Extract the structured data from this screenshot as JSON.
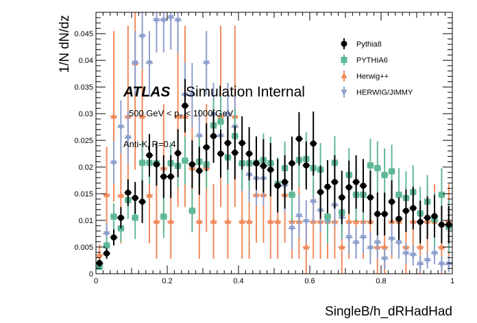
{
  "chart_data": {
    "type": "scatter",
    "xlabel": "SingleB/h_dRHadHad",
    "ylabel": "1/N dN/dz",
    "xlim": [
      0,
      1
    ],
    "ylim": [
      0,
      0.049
    ],
    "x_ticks": [
      "0",
      "0.2",
      "0.4",
      "0.6",
      "0.8",
      "1"
    ],
    "x_tick_values": [
      0,
      0.2,
      0.4,
      0.6,
      0.8,
      1.0
    ],
    "y_ticks": [
      "0",
      "0.005",
      "0.01",
      "0.015",
      "0.02",
      "0.025",
      "0.03",
      "0.035",
      "0.04",
      "0.045"
    ],
    "y_tick_values": [
      0,
      0.005,
      0.01,
      0.015,
      0.02,
      0.025,
      0.03,
      0.035,
      0.04,
      0.045
    ],
    "grid": false,
    "legend_position": "top-right",
    "annotations": {
      "atlas": "ATLAS",
      "atlas_sub": "Simulation Internal",
      "pt_range": "500 GeV < p",
      "pt_sub": "T",
      "pt_range_end": " < 1000 GeV",
      "jet_algo": "Anti-K",
      "jet_algo_sub": "t",
      "jet_algo_end": " R=0.4"
    },
    "series": [
      {
        "name": "Pythia8",
        "color": "#000000",
        "marker": "circle",
        "x": [
          0.01,
          0.03,
          0.05,
          0.07,
          0.09,
          0.11,
          0.13,
          0.15,
          0.17,
          0.19,
          0.21,
          0.23,
          0.25,
          0.27,
          0.29,
          0.31,
          0.33,
          0.35,
          0.37,
          0.39,
          0.41,
          0.43,
          0.45,
          0.47,
          0.49,
          0.51,
          0.53,
          0.55,
          0.57,
          0.59,
          0.61,
          0.63,
          0.65,
          0.67,
          0.69,
          0.71,
          0.73,
          0.75,
          0.77,
          0.79,
          0.81,
          0.83,
          0.85,
          0.87,
          0.89,
          0.91,
          0.93,
          0.95,
          0.97,
          0.99
        ],
        "y": [
          0.002,
          0.0038,
          0.0068,
          0.0105,
          0.0152,
          0.0142,
          0.0135,
          0.0222,
          0.0205,
          0.0182,
          0.0182,
          0.0226,
          0.0315,
          0.0205,
          0.0193,
          0.0237,
          0.0258,
          0.0225,
          0.0245,
          0.0227,
          0.0245,
          0.0225,
          0.0207,
          0.0202,
          0.0195,
          0.0165,
          0.0172,
          0.0207,
          0.0253,
          0.0203,
          0.0244,
          0.0153,
          0.0163,
          0.0172,
          0.0143,
          0.0162,
          0.0172,
          0.0165,
          0.0143,
          0.0112,
          0.0112,
          0.0135,
          0.0103,
          0.0118,
          0.0123,
          0.0097,
          0.0105,
          0.0108,
          0.0092,
          0.0092
        ],
        "err": [
          0.0007,
          0.001,
          0.0015,
          0.002,
          0.0025,
          0.003,
          0.004,
          0.004,
          0.004,
          0.004,
          0.004,
          0.0045,
          0.005,
          0.0045,
          0.0045,
          0.0045,
          0.005,
          0.0045,
          0.005,
          0.005,
          0.005,
          0.005,
          0.005,
          0.005,
          0.005,
          0.005,
          0.005,
          0.005,
          0.005,
          0.0045,
          0.006,
          0.005,
          0.005,
          0.005,
          0.005,
          0.005,
          0.005,
          0.005,
          0.005,
          0.004,
          0.004,
          0.004,
          0.004,
          0.004,
          0.004,
          0.004,
          0.004,
          0.004,
          0.0035,
          0.0035
        ]
      },
      {
        "name": "PYTHIA6",
        "color": "#5fb896",
        "marker": "square",
        "x": [
          0.01,
          0.03,
          0.05,
          0.07,
          0.09,
          0.11,
          0.13,
          0.15,
          0.17,
          0.19,
          0.21,
          0.23,
          0.25,
          0.27,
          0.29,
          0.31,
          0.33,
          0.35,
          0.37,
          0.39,
          0.41,
          0.43,
          0.45,
          0.47,
          0.49,
          0.51,
          0.53,
          0.55,
          0.57,
          0.59,
          0.61,
          0.63,
          0.65,
          0.67,
          0.69,
          0.71,
          0.73,
          0.75,
          0.77,
          0.79,
          0.81,
          0.83,
          0.85,
          0.87,
          0.89,
          0.91,
          0.93,
          0.95,
          0.97,
          0.99
        ],
        "y": [
          0.0013,
          0.0053,
          0.0107,
          0.0085,
          0.0138,
          0.0105,
          0.0208,
          0.0208,
          0.0207,
          0.0107,
          0.0207,
          0.0202,
          0.0212,
          0.0118,
          0.021,
          0.0205,
          0.0278,
          0.0285,
          0.0218,
          0.0258,
          0.0207,
          0.0207,
          0.0208,
          0.0213,
          0.0207,
          0.0168,
          0.0198,
          0.0148,
          0.0213,
          0.0215,
          0.0198,
          0.0195,
          0.0107,
          0.0208,
          0.0115,
          0.0185,
          0.0148,
          0.0148,
          0.0203,
          0.0198,
          0.0185,
          0.0192,
          0.0148,
          0.0142,
          0.0153,
          0.0113,
          0.0135,
          0.0102,
          0.0148,
          0.0088
        ],
        "err": [
          0.0005,
          0.0015,
          0.0025,
          0.0025,
          0.0035,
          0.004,
          0.004,
          0.004,
          0.004,
          0.004,
          0.004,
          0.004,
          0.0045,
          0.004,
          0.0045,
          0.0045,
          0.005,
          0.005,
          0.005,
          0.005,
          0.005,
          0.005,
          0.005,
          0.005,
          0.005,
          0.005,
          0.005,
          0.005,
          0.005,
          0.005,
          0.005,
          0.005,
          0.005,
          0.005,
          0.005,
          0.005,
          0.005,
          0.005,
          0.005,
          0.005,
          0.005,
          0.005,
          0.005,
          0.005,
          0.005,
          0.005,
          0.005,
          0.005,
          0.005,
          0.005
        ]
      },
      {
        "name": "Herwig++",
        "color": "#f08a5b",
        "marker": "triangle-up",
        "x": [
          0.01,
          0.03,
          0.05,
          0.07,
          0.09,
          0.11,
          0.13,
          0.15,
          0.17,
          0.19,
          0.21,
          0.23,
          0.25,
          0.27,
          0.29,
          0.31,
          0.33,
          0.35,
          0.37,
          0.39,
          0.41,
          0.43,
          0.45,
          0.47,
          0.49,
          0.51,
          0.53,
          0.55,
          0.57,
          0.59,
          0.61,
          0.63,
          0.65,
          0.67,
          0.69,
          0.71,
          0.73,
          0.75,
          0.77,
          0.79,
          0.81,
          0.83,
          0.85,
          0.87,
          0.89,
          0.91,
          0.93,
          0.95,
          0.97,
          0.99
        ],
        "y": [
          0.0035,
          0.0148,
          0.0295,
          0.0147,
          0.0295,
          0.0395,
          0.0295,
          0.0147,
          0.0098,
          0.0198,
          0.0098,
          0.0295,
          0.0295,
          0.0198,
          0.0098,
          0.0198,
          0.0098,
          0.0295,
          0.0098,
          0.0295,
          0.0098,
          0.0098,
          0.0148,
          0.0148,
          0.0098,
          0.0098,
          0.0148,
          0.0098,
          0.0098,
          0.005,
          0.0098,
          0.0098,
          0.0098,
          0.0098,
          0.005,
          0.0098,
          0.0098,
          0.0098,
          0.0098,
          0.005,
          0.005,
          0.0098,
          0.0098,
          0.005,
          0.0098,
          0.005,
          0.0098,
          0.0098,
          0.005,
          0.0098
        ],
        "err": [
          0.002,
          0.009,
          0.016,
          0.009,
          0.017,
          0.02,
          0.017,
          0.009,
          0.007,
          0.012,
          0.007,
          0.017,
          0.017,
          0.012,
          0.007,
          0.012,
          0.007,
          0.017,
          0.007,
          0.017,
          0.007,
          0.007,
          0.009,
          0.009,
          0.007,
          0.007,
          0.009,
          0.007,
          0.007,
          0.005,
          0.007,
          0.007,
          0.007,
          0.007,
          0.005,
          0.007,
          0.007,
          0.007,
          0.007,
          0.005,
          0.005,
          0.007,
          0.007,
          0.005,
          0.007,
          0.005,
          0.007,
          0.007,
          0.005,
          0.007
        ]
      },
      {
        "name": "HERWIG/JIMMY",
        "color": "#8d9fce",
        "marker": "triangle-down",
        "x": [
          0.01,
          0.03,
          0.05,
          0.07,
          0.09,
          0.11,
          0.13,
          0.15,
          0.17,
          0.19,
          0.21,
          0.23,
          0.25,
          0.27,
          0.29,
          0.31,
          0.33,
          0.35,
          0.37,
          0.39,
          0.41,
          0.43,
          0.45,
          0.47,
          0.49,
          0.51,
          0.53,
          0.55,
          0.57,
          0.59,
          0.61,
          0.63,
          0.65,
          0.67,
          0.69,
          0.71,
          0.73,
          0.75,
          0.77,
          0.79,
          0.81,
          0.83,
          0.85,
          0.87,
          0.89,
          0.91,
          0.93,
          0.95,
          0.97,
          0.99
        ],
        "y": [
          0.0018,
          0.0075,
          0.0208,
          0.0275,
          0.0255,
          0.0395,
          0.0445,
          0.0395,
          0.0475,
          0.0475,
          0.048,
          0.0475,
          0.0335,
          0.0335,
          0.0258,
          0.0395,
          0.0298,
          0.0258,
          0.0298,
          0.0275,
          0.0205,
          0.0185,
          0.0178,
          0.0178,
          0.0205,
          0.0165,
          0.0165,
          0.0085,
          0.0108,
          0.0098,
          0.0135,
          0.0118,
          0.0098,
          0.0128,
          0.0105,
          0.0068,
          0.0058,
          0.0068,
          0.0048,
          0.0058,
          0.0028,
          0.0065,
          0.0058,
          0.0038,
          0.0035,
          0.0018,
          0.0025,
          0.0038,
          0.0018,
          0.0018
        ],
        "err": [
          0.0008,
          0.002,
          0.004,
          0.005,
          0.005,
          0.006,
          0.006,
          0.006,
          0.006,
          0.006,
          0.006,
          0.006,
          0.006,
          0.006,
          0.005,
          0.006,
          0.006,
          0.005,
          0.006,
          0.006,
          0.005,
          0.005,
          0.005,
          0.005,
          0.005,
          0.005,
          0.005,
          0.004,
          0.004,
          0.004,
          0.004,
          0.004,
          0.004,
          0.004,
          0.004,
          0.003,
          0.003,
          0.003,
          0.003,
          0.003,
          0.002,
          0.003,
          0.003,
          0.002,
          0.002,
          0.0015,
          0.0015,
          0.002,
          0.0015,
          0.0015
        ]
      }
    ]
  }
}
